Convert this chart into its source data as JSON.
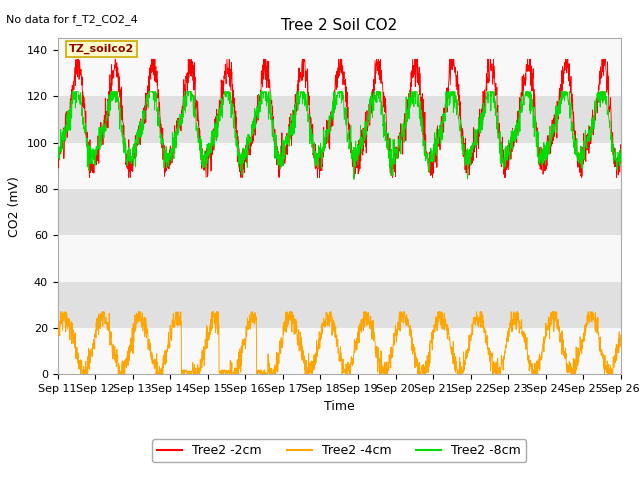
{
  "title": "Tree 2 Soil CO2",
  "no_data_text": "No data for f_T2_CO2_4",
  "annotation_text": "TZ_soilco2",
  "ylabel": "CO2 (mV)",
  "xlabel": "Time",
  "ylim": [
    0,
    145
  ],
  "yticks": [
    0,
    20,
    40,
    60,
    80,
    100,
    120,
    140
  ],
  "xticklabels": [
    "Sep 11",
    "Sep 12",
    "Sep 13",
    "Sep 14",
    "Sep 15",
    "Sep 16",
    "Sep 17",
    "Sep 18",
    "Sep 19",
    "Sep 20",
    "Sep 21",
    "Sep 22",
    "Sep 23",
    "Sep 24",
    "Sep 25",
    "Sep 26"
  ],
  "color_red": "#FF0000",
  "color_orange": "#FFA500",
  "color_green": "#00DD00",
  "legend_labels": [
    "Tree2 -2cm",
    "Tree2 -4cm",
    "Tree2 -8cm"
  ],
  "bg_color": "#FFFFFF",
  "band_gray": "#E0E0E0",
  "band_white": "#F8F8F8",
  "title_fontsize": 11,
  "label_fontsize": 9,
  "tick_fontsize": 8
}
